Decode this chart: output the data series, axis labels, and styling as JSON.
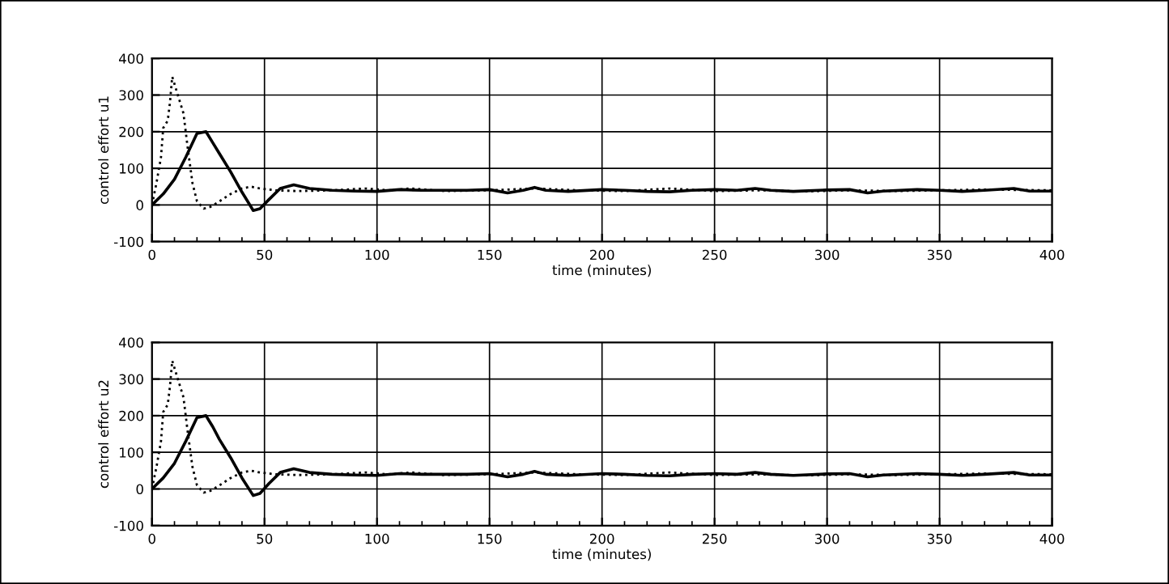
{
  "chart_data": [
    {
      "type": "line",
      "xlabel": "time (minutes)",
      "ylabel": "control effort u1",
      "xlim": [
        0,
        400
      ],
      "ylim": [
        -100,
        400
      ],
      "xticks": [
        0,
        50,
        100,
        150,
        200,
        250,
        300,
        350,
        400
      ],
      "yticks": [
        -100,
        0,
        100,
        200,
        300,
        400
      ],
      "grid": true,
      "series": [
        {
          "color": "#000000",
          "line_style": "solid",
          "x": [
            0,
            5,
            10,
            15,
            20,
            24,
            27,
            30,
            35,
            40,
            45,
            48,
            52,
            57,
            63,
            70,
            80,
            90,
            100,
            110,
            120,
            130,
            140,
            150,
            158,
            165,
            170,
            175,
            185,
            200,
            210,
            220,
            230,
            240,
            250,
            260,
            268,
            275,
            285,
            300,
            310,
            318,
            325,
            340,
            350,
            360,
            370,
            383,
            390,
            400
          ],
          "values": [
            0,
            30,
            70,
            130,
            195,
            200,
            170,
            140,
            90,
            35,
            -15,
            -10,
            15,
            45,
            55,
            45,
            40,
            38,
            37,
            42,
            40,
            40,
            40,
            42,
            33,
            40,
            48,
            40,
            37,
            42,
            40,
            37,
            36,
            40,
            42,
            40,
            45,
            40,
            37,
            41,
            42,
            33,
            38,
            42,
            40,
            37,
            40,
            45,
            38,
            38
          ]
        },
        {
          "color": "#000000",
          "line_style": "dotted",
          "x": [
            0,
            2,
            4,
            5,
            7,
            8,
            9,
            11,
            14,
            16,
            18,
            20,
            23,
            26,
            30,
            35,
            40,
            44,
            48,
            55,
            65,
            80,
            95,
            105,
            115,
            130,
            150,
            170,
            190,
            210,
            230,
            250,
            270,
            290,
            310,
            330,
            350,
            370,
            400
          ],
          "values": [
            0,
            60,
            130,
            210,
            230,
            280,
            350,
            310,
            250,
            150,
            60,
            10,
            -10,
            -5,
            10,
            30,
            45,
            50,
            45,
            40,
            38,
            40,
            45,
            40,
            45,
            38,
            40,
            45,
            40,
            38,
            45,
            38,
            40,
            37,
            40,
            38,
            40,
            42,
            40
          ]
        }
      ]
    },
    {
      "type": "line",
      "xlabel": "time (minutes)",
      "ylabel": "control effort u2",
      "xlim": [
        0,
        400
      ],
      "ylim": [
        -100,
        400
      ],
      "xticks": [
        0,
        50,
        100,
        150,
        200,
        250,
        300,
        350,
        400
      ],
      "yticks": [
        -100,
        0,
        100,
        200,
        300,
        400
      ],
      "grid": true,
      "series": [
        {
          "color": "#000000",
          "line_style": "solid",
          "x": [
            0,
            5,
            10,
            15,
            20,
            24,
            27,
            30,
            35,
            40,
            45,
            48,
            52,
            57,
            63,
            70,
            80,
            90,
            100,
            110,
            120,
            130,
            140,
            150,
            158,
            165,
            170,
            175,
            185,
            200,
            210,
            220,
            230,
            240,
            250,
            260,
            268,
            275,
            285,
            300,
            310,
            318,
            325,
            340,
            350,
            360,
            370,
            383,
            390,
            400
          ],
          "values": [
            0,
            30,
            70,
            130,
            195,
            200,
            170,
            135,
            85,
            30,
            -18,
            -12,
            15,
            45,
            55,
            45,
            40,
            38,
            37,
            42,
            40,
            40,
            40,
            42,
            33,
            40,
            48,
            40,
            37,
            42,
            40,
            37,
            36,
            40,
            42,
            40,
            45,
            40,
            37,
            41,
            42,
            33,
            38,
            42,
            40,
            37,
            40,
            45,
            38,
            38
          ]
        },
        {
          "color": "#000000",
          "line_style": "dotted",
          "x": [
            0,
            2,
            4,
            5,
            7,
            8,
            9,
            11,
            14,
            16,
            18,
            20,
            23,
            26,
            30,
            35,
            40,
            44,
            48,
            55,
            65,
            80,
            95,
            105,
            115,
            130,
            150,
            170,
            190,
            210,
            230,
            250,
            270,
            290,
            310,
            330,
            350,
            370,
            400
          ],
          "values": [
            0,
            60,
            130,
            210,
            230,
            280,
            350,
            310,
            250,
            150,
            60,
            10,
            -10,
            -5,
            10,
            30,
            45,
            50,
            45,
            40,
            38,
            40,
            45,
            40,
            45,
            38,
            40,
            45,
            40,
            38,
            45,
            38,
            40,
            37,
            40,
            38,
            40,
            42,
            40
          ]
        }
      ]
    }
  ]
}
